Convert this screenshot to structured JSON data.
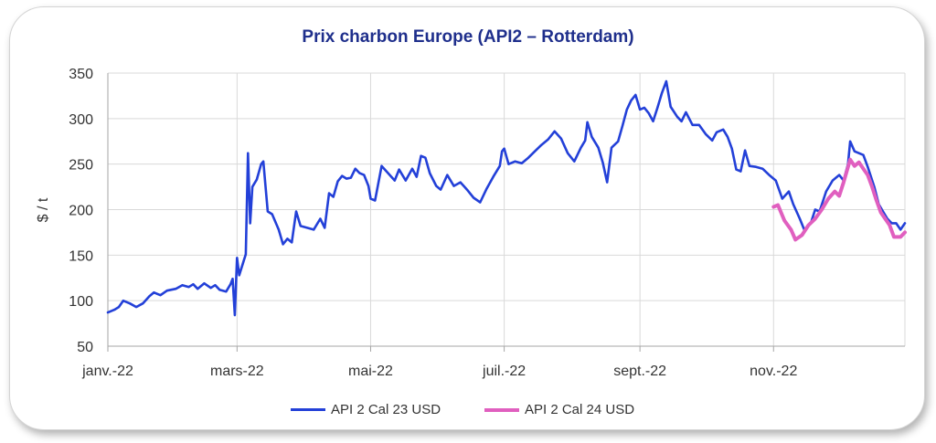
{
  "chart_data": {
    "type": "line",
    "title": "Prix charbon Europe (API2 – Rotterdam)",
    "xlabel": "",
    "ylabel": "$ / t",
    "ylim": [
      50,
      350
    ],
    "yticks": [
      50,
      100,
      150,
      200,
      250,
      300,
      350
    ],
    "xticks": [
      {
        "date": "2022-01-01",
        "label": "janv.-22"
      },
      {
        "date": "2022-03-01",
        "label": "mars-22"
      },
      {
        "date": "2022-05-01",
        "label": "mai-22"
      },
      {
        "date": "2022-07-01",
        "label": "juil.-22"
      },
      {
        "date": "2022-09-01",
        "label": "sept.-22"
      },
      {
        "date": "2022-11-01",
        "label": "nov.-22"
      }
    ],
    "xlim": [
      "2022-01-01",
      "2022-12-31"
    ],
    "grid": "vertical",
    "legend": "bottom",
    "series": [
      {
        "name": "API 2 Cal 23 USD",
        "color": "#2340d8",
        "points": [
          [
            "2022-01-01",
            87
          ],
          [
            "2022-01-04",
            90
          ],
          [
            "2022-01-06",
            93
          ],
          [
            "2022-01-08",
            100
          ],
          [
            "2022-01-11",
            97
          ],
          [
            "2022-01-14",
            93
          ],
          [
            "2022-01-17",
            97
          ],
          [
            "2022-01-20",
            105
          ],
          [
            "2022-01-22",
            109
          ],
          [
            "2022-01-25",
            106
          ],
          [
            "2022-01-28",
            111
          ],
          [
            "2022-02-01",
            113
          ],
          [
            "2022-02-04",
            117
          ],
          [
            "2022-02-07",
            115
          ],
          [
            "2022-02-09",
            118
          ],
          [
            "2022-02-11",
            113
          ],
          [
            "2022-02-14",
            119
          ],
          [
            "2022-02-17",
            114
          ],
          [
            "2022-02-19",
            117
          ],
          [
            "2022-02-21",
            112
          ],
          [
            "2022-02-24",
            110
          ],
          [
            "2022-02-26",
            118
          ],
          [
            "2022-02-27",
            124
          ],
          [
            "2022-02-28",
            84
          ],
          [
            "2022-03-01",
            147
          ],
          [
            "2022-03-02",
            128
          ],
          [
            "2022-03-05",
            151
          ],
          [
            "2022-03-06",
            262
          ],
          [
            "2022-03-07",
            185
          ],
          [
            "2022-03-08",
            225
          ],
          [
            "2022-03-10",
            233
          ],
          [
            "2022-03-12",
            250
          ],
          [
            "2022-03-13",
            253
          ],
          [
            "2022-03-15",
            198
          ],
          [
            "2022-03-17",
            195
          ],
          [
            "2022-03-20",
            178
          ],
          [
            "2022-03-22",
            162
          ],
          [
            "2022-03-24",
            168
          ],
          [
            "2022-03-26",
            164
          ],
          [
            "2022-03-28",
            198
          ],
          [
            "2022-03-30",
            182
          ],
          [
            "2022-04-02",
            180
          ],
          [
            "2022-04-05",
            178
          ],
          [
            "2022-04-08",
            190
          ],
          [
            "2022-04-10",
            180
          ],
          [
            "2022-04-12",
            218
          ],
          [
            "2022-04-14",
            214
          ],
          [
            "2022-04-16",
            231
          ],
          [
            "2022-04-18",
            237
          ],
          [
            "2022-04-20",
            234
          ],
          [
            "2022-04-22",
            235
          ],
          [
            "2022-04-24",
            245
          ],
          [
            "2022-04-26",
            240
          ],
          [
            "2022-04-28",
            238
          ],
          [
            "2022-04-30",
            226
          ],
          [
            "2022-05-01",
            212
          ],
          [
            "2022-05-03",
            210
          ],
          [
            "2022-05-06",
            248
          ],
          [
            "2022-05-09",
            240
          ],
          [
            "2022-05-12",
            232
          ],
          [
            "2022-05-14",
            244
          ],
          [
            "2022-05-17",
            232
          ],
          [
            "2022-05-20",
            245
          ],
          [
            "2022-05-22",
            236
          ],
          [
            "2022-05-24",
            259
          ],
          [
            "2022-05-26",
            257
          ],
          [
            "2022-05-28",
            240
          ],
          [
            "2022-05-31",
            226
          ],
          [
            "2022-06-02",
            222
          ],
          [
            "2022-06-05",
            238
          ],
          [
            "2022-06-08",
            226
          ],
          [
            "2022-06-11",
            230
          ],
          [
            "2022-06-14",
            222
          ],
          [
            "2022-06-17",
            213
          ],
          [
            "2022-06-20",
            208
          ],
          [
            "2022-06-23",
            223
          ],
          [
            "2022-06-26",
            236
          ],
          [
            "2022-06-29",
            248
          ],
          [
            "2022-06-30",
            264
          ],
          [
            "2022-07-01",
            267
          ],
          [
            "2022-07-03",
            250
          ],
          [
            "2022-07-06",
            253
          ],
          [
            "2022-07-09",
            251
          ],
          [
            "2022-07-12",
            257
          ],
          [
            "2022-07-15",
            264
          ],
          [
            "2022-07-18",
            271
          ],
          [
            "2022-07-21",
            277
          ],
          [
            "2022-07-24",
            286
          ],
          [
            "2022-07-27",
            278
          ],
          [
            "2022-07-30",
            262
          ],
          [
            "2022-08-02",
            253
          ],
          [
            "2022-08-05",
            268
          ],
          [
            "2022-08-07",
            276
          ],
          [
            "2022-08-08",
            296
          ],
          [
            "2022-08-10",
            280
          ],
          [
            "2022-08-13",
            268
          ],
          [
            "2022-08-15",
            252
          ],
          [
            "2022-08-17",
            230
          ],
          [
            "2022-08-19",
            268
          ],
          [
            "2022-08-22",
            275
          ],
          [
            "2022-08-24",
            292
          ],
          [
            "2022-08-26",
            310
          ],
          [
            "2022-08-28",
            320
          ],
          [
            "2022-08-30",
            326
          ],
          [
            "2022-09-01",
            310
          ],
          [
            "2022-09-03",
            312
          ],
          [
            "2022-09-05",
            306
          ],
          [
            "2022-09-07",
            297
          ],
          [
            "2022-09-09",
            312
          ],
          [
            "2022-09-11",
            328
          ],
          [
            "2022-09-13",
            341
          ],
          [
            "2022-09-15",
            313
          ],
          [
            "2022-09-18",
            302
          ],
          [
            "2022-09-20",
            297
          ],
          [
            "2022-09-22",
            307
          ],
          [
            "2022-09-25",
            293
          ],
          [
            "2022-09-28",
            293
          ],
          [
            "2022-10-01",
            283
          ],
          [
            "2022-10-04",
            276
          ],
          [
            "2022-10-06",
            285
          ],
          [
            "2022-10-09",
            288
          ],
          [
            "2022-10-11",
            280
          ],
          [
            "2022-10-13",
            267
          ],
          [
            "2022-10-15",
            244
          ],
          [
            "2022-10-17",
            242
          ],
          [
            "2022-10-19",
            265
          ],
          [
            "2022-10-21",
            248
          ],
          [
            "2022-10-24",
            247
          ],
          [
            "2022-10-27",
            245
          ],
          [
            "2022-10-30",
            238
          ],
          [
            "2022-11-02",
            232
          ],
          [
            "2022-11-05",
            212
          ],
          [
            "2022-11-08",
            220
          ],
          [
            "2022-11-10",
            206
          ],
          [
            "2022-11-13",
            190
          ],
          [
            "2022-11-15",
            178
          ],
          [
            "2022-11-18",
            185
          ],
          [
            "2022-11-20",
            200
          ],
          [
            "2022-11-22",
            198
          ],
          [
            "2022-11-25",
            220
          ],
          [
            "2022-11-28",
            232
          ],
          [
            "2022-12-01",
            238
          ],
          [
            "2022-12-03",
            232
          ],
          [
            "2022-12-05",
            250
          ],
          [
            "2022-12-06",
            275
          ],
          [
            "2022-12-08",
            264
          ],
          [
            "2022-12-10",
            262
          ],
          [
            "2022-12-12",
            260
          ],
          [
            "2022-12-14",
            247
          ],
          [
            "2022-12-17",
            225
          ],
          [
            "2022-12-19",
            206
          ],
          [
            "2022-12-21",
            198
          ],
          [
            "2022-12-23",
            190
          ],
          [
            "2022-12-25",
            185
          ],
          [
            "2022-12-27",
            185
          ],
          [
            "2022-12-29",
            178
          ],
          [
            "2022-12-31",
            185
          ]
        ]
      },
      {
        "name": "API 2 Cal 24 USD",
        "color": "#e05fbf",
        "points": [
          [
            "2022-11-01",
            203
          ],
          [
            "2022-11-03",
            205
          ],
          [
            "2022-11-06",
            188
          ],
          [
            "2022-11-09",
            178
          ],
          [
            "2022-11-11",
            167
          ],
          [
            "2022-11-14",
            172
          ],
          [
            "2022-11-17",
            183
          ],
          [
            "2022-11-20",
            190
          ],
          [
            "2022-11-23",
            200
          ],
          [
            "2022-11-26",
            212
          ],
          [
            "2022-11-29",
            220
          ],
          [
            "2022-12-01",
            215
          ],
          [
            "2022-12-03",
            230
          ],
          [
            "2022-12-06",
            255
          ],
          [
            "2022-12-08",
            248
          ],
          [
            "2022-12-10",
            252
          ],
          [
            "2022-12-12",
            245
          ],
          [
            "2022-12-14",
            238
          ],
          [
            "2022-12-16",
            225
          ],
          [
            "2022-12-18",
            210
          ],
          [
            "2022-12-20",
            197
          ],
          [
            "2022-12-22",
            190
          ],
          [
            "2022-12-24",
            183
          ],
          [
            "2022-12-26",
            170
          ],
          [
            "2022-12-29",
            170
          ],
          [
            "2022-12-31",
            175
          ]
        ]
      }
    ]
  }
}
